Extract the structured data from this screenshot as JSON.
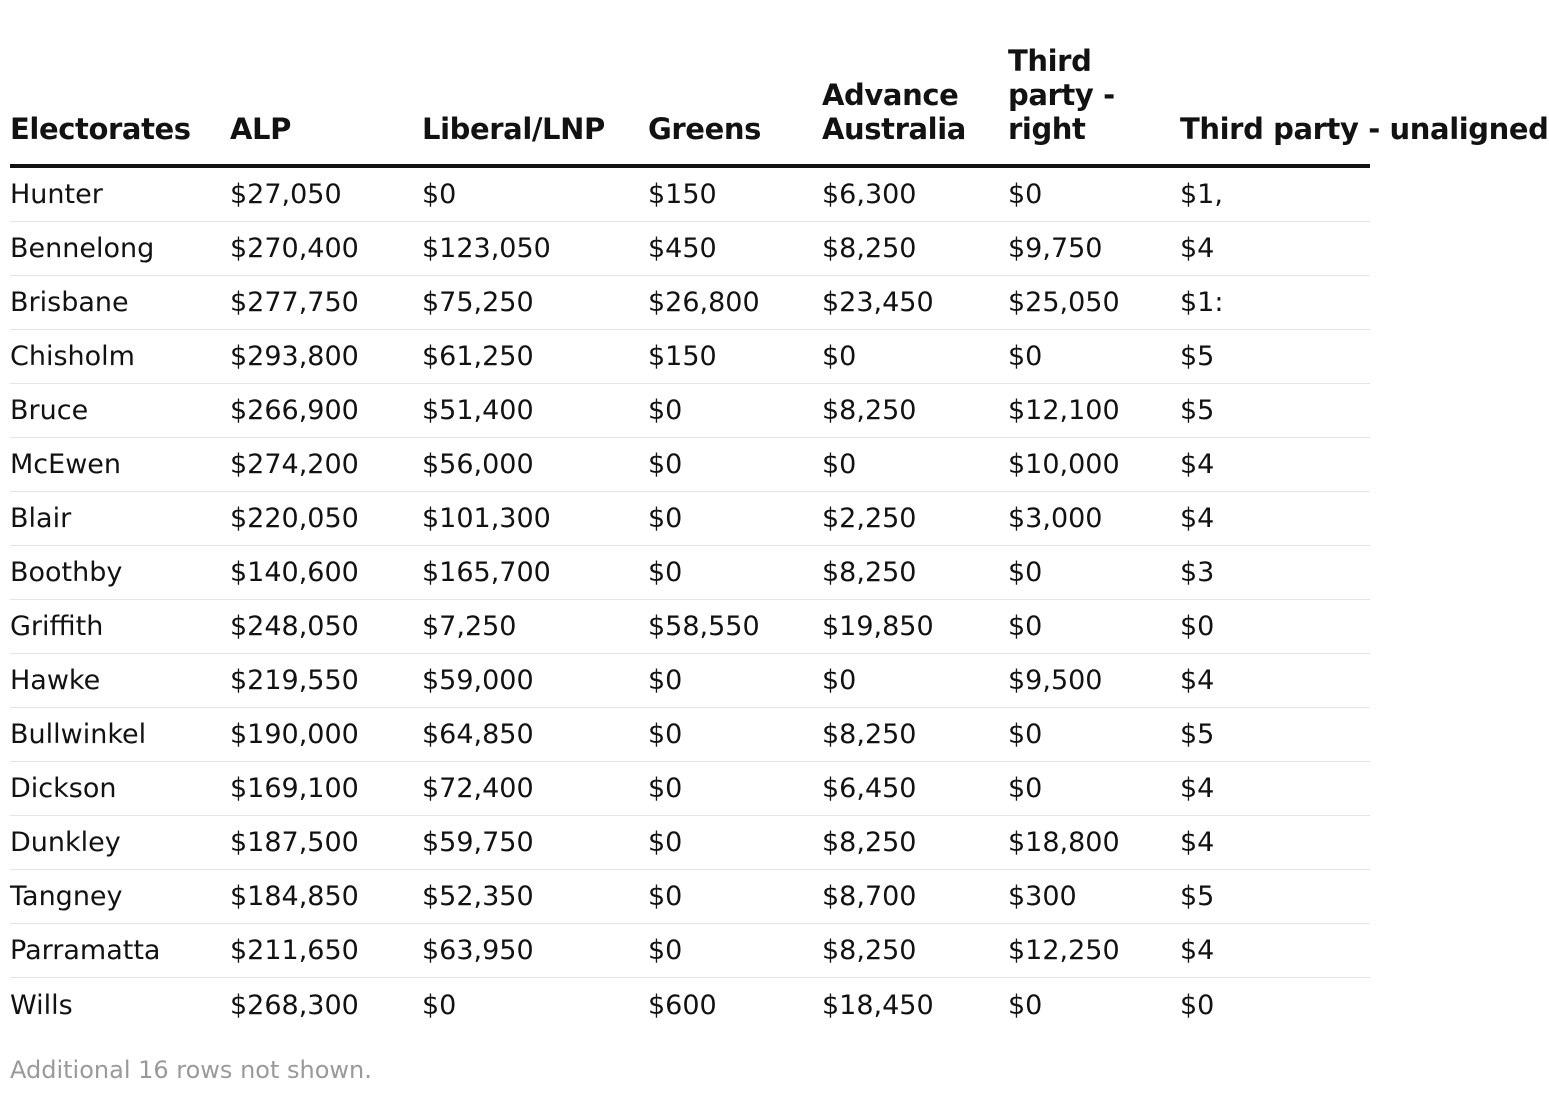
{
  "table": {
    "headers": [
      "Electorates",
      "ALP",
      "Liberal/LNP",
      "Greens",
      "Advance Australia",
      "Third party - right",
      "Third party - unaligned"
    ],
    "rows": [
      [
        "Hunter",
        "$27,050",
        "$0",
        "$150",
        "$6,300",
        "$0",
        "$1,"
      ],
      [
        "Bennelong",
        "$270,400",
        "$123,050",
        "$450",
        "$8,250",
        "$9,750",
        "$4"
      ],
      [
        "Brisbane",
        "$277,750",
        "$75,250",
        "$26,800",
        "$23,450",
        "$25,050",
        "$1:"
      ],
      [
        "Chisholm",
        "$293,800",
        "$61,250",
        "$150",
        "$0",
        "$0",
        "$5"
      ],
      [
        "Bruce",
        "$266,900",
        "$51,400",
        "$0",
        "$8,250",
        "$12,100",
        "$5"
      ],
      [
        "McEwen",
        "$274,200",
        "$56,000",
        "$0",
        "$0",
        "$10,000",
        "$4"
      ],
      [
        "Blair",
        "$220,050",
        "$101,300",
        "$0",
        "$2,250",
        "$3,000",
        "$4"
      ],
      [
        "Boothby",
        "$140,600",
        "$165,700",
        "$0",
        "$8,250",
        "$0",
        "$3"
      ],
      [
        "Griffith",
        "$248,050",
        "$7,250",
        "$58,550",
        "$19,850",
        "$0",
        "$0"
      ],
      [
        "Hawke",
        "$219,550",
        "$59,000",
        "$0",
        "$0",
        "$9,500",
        "$4"
      ],
      [
        "Bullwinkel",
        "$190,000",
        "$64,850",
        "$0",
        "$8,250",
        "$0",
        "$5"
      ],
      [
        "Dickson",
        "$169,100",
        "$72,400",
        "$0",
        "$6,450",
        "$0",
        "$4"
      ],
      [
        "Dunkley",
        "$187,500",
        "$59,750",
        "$0",
        "$8,250",
        "$18,800",
        "$4"
      ],
      [
        "Tangney",
        "$184,850",
        "$52,350",
        "$0",
        "$8,700",
        "$300",
        "$5"
      ],
      [
        "Parramatta",
        "$211,650",
        "$63,950",
        "$0",
        "$8,250",
        "$12,250",
        "$4"
      ],
      [
        "Wills",
        "$268,300",
        "$0",
        "$600",
        "$18,450",
        "$0",
        "$0"
      ]
    ],
    "footnote": "Additional 16 rows not shown."
  },
  "chart_data": {
    "type": "table",
    "title": "",
    "columns": [
      "Electorates",
      "ALP",
      "Liberal/LNP",
      "Greens",
      "Advance Australia",
      "Third party - right",
      "Third party - unaligned"
    ],
    "rows": [
      [
        "Hunter",
        27050,
        0,
        150,
        6300,
        0,
        null
      ],
      [
        "Bennelong",
        270400,
        123050,
        450,
        8250,
        9750,
        null
      ],
      [
        "Brisbane",
        277750,
        75250,
        26800,
        23450,
        25050,
        null
      ],
      [
        "Chisholm",
        293800,
        61250,
        150,
        0,
        0,
        null
      ],
      [
        "Bruce",
        266900,
        51400,
        0,
        8250,
        12100,
        null
      ],
      [
        "McEwen",
        274200,
        56000,
        0,
        0,
        10000,
        null
      ],
      [
        "Blair",
        220050,
        101300,
        0,
        2250,
        3000,
        null
      ],
      [
        "Boothby",
        140600,
        165700,
        0,
        8250,
        0,
        null
      ],
      [
        "Griffith",
        248050,
        7250,
        58550,
        19850,
        0,
        null
      ],
      [
        "Hawke",
        219550,
        59000,
        0,
        0,
        9500,
        null
      ],
      [
        "Bullwinkel",
        190000,
        64850,
        0,
        8250,
        0,
        null
      ],
      [
        "Dickson",
        169100,
        72400,
        0,
        6450,
        0,
        null
      ],
      [
        "Dunkley",
        187500,
        59750,
        0,
        8250,
        18800,
        null
      ],
      [
        "Tangney",
        184850,
        52350,
        0,
        8700,
        300,
        null
      ],
      [
        "Parramatta",
        211650,
        63950,
        0,
        8250,
        12250,
        null
      ],
      [
        "Wills",
        268300,
        0,
        600,
        18450,
        0,
        null
      ]
    ],
    "note": "Additional 16 rows not shown."
  }
}
